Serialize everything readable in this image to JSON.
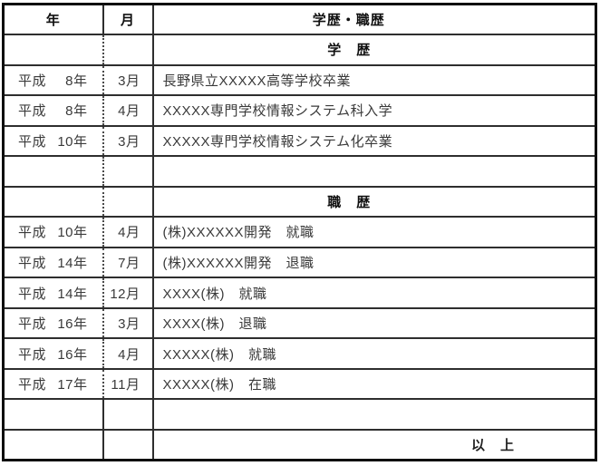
{
  "page": {
    "background": "#ffffff",
    "outer_border_color": "#0e0e0e",
    "grid_line_color": "#2e2e2e"
  },
  "table": {
    "headers": {
      "year": "年",
      "month": "月",
      "history": "学歴・職歴"
    },
    "rows": [
      {
        "type": "section",
        "era": "",
        "year": "",
        "month": "",
        "text": "学　歴"
      },
      {
        "type": "entry",
        "era": "平成",
        "year": "8年",
        "month": "3月",
        "text": "長野県立XXXXX高等学校卒業"
      },
      {
        "type": "entry",
        "era": "平成",
        "year": "8年",
        "month": "4月",
        "text": "XXXXX専門学校情報システム科入学"
      },
      {
        "type": "entry",
        "era": "平成",
        "year": "10年",
        "month": "3月",
        "text": "XXXXX専門学校情報システム化卒業"
      },
      {
        "type": "empty",
        "era": "",
        "year": "",
        "month": "",
        "text": ""
      },
      {
        "type": "section",
        "era": "",
        "year": "",
        "month": "",
        "text": "職　歴"
      },
      {
        "type": "entry",
        "era": "平成",
        "year": "10年",
        "month": "4月",
        "text": "(株)XXXXXX開発　就職"
      },
      {
        "type": "entry",
        "era": "平成",
        "year": "14年",
        "month": "7月",
        "text": "(株)XXXXXX開発　退職"
      },
      {
        "type": "entry",
        "era": "平成",
        "year": "14年",
        "month": "12月",
        "text": "XXXX(株)　就職"
      },
      {
        "type": "entry",
        "era": "平成",
        "year": "16年",
        "month": "3月",
        "text": "XXXX(株)　退職"
      },
      {
        "type": "entry",
        "era": "平成",
        "year": "16年",
        "month": "4月",
        "text": "XXXXX(株)　就職"
      },
      {
        "type": "entry",
        "era": "平成",
        "year": "17年",
        "month": "11月",
        "text": "XXXXX(株)　在職"
      },
      {
        "type": "empty",
        "era": "",
        "year": "",
        "month": "",
        "text": ""
      },
      {
        "type": "closing",
        "era": "",
        "year": "",
        "month": "",
        "text": "以　上"
      }
    ]
  }
}
